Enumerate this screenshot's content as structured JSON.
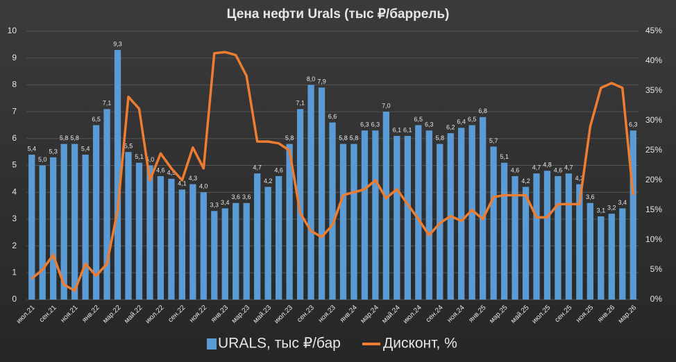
{
  "chart_data": {
    "type": "bar_line",
    "title": "Цена нефти Urals (тыс ₽/баррель)",
    "categories": [
      "июл.21",
      null,
      "сен.21",
      null,
      "ноя.21",
      null,
      "янв.22",
      null,
      "мар.22",
      null,
      "май.22",
      null,
      "июл.22",
      null,
      "сен.22",
      null,
      "ноя.22",
      null,
      "янв.23",
      null,
      "мар.23",
      null,
      "май.23",
      null,
      "июл.23",
      null,
      "сен.23",
      null,
      "ноя.23",
      null,
      "янв.24",
      null,
      "мар.24",
      null,
      "май.24",
      null,
      "июл.24",
      null,
      "сен.24",
      null,
      "ноя.24",
      null,
      "янв.25",
      null,
      "мар.25",
      null,
      "май.25",
      null,
      "июл.25",
      null,
      "сен.25",
      null,
      "ноя.25",
      null,
      "янв.26",
      null,
      "мар.26"
    ],
    "series": [
      {
        "name": "URALS, тыс ₽/бар",
        "color": "#5b9bd5",
        "axis": "y",
        "values": [
          5.4,
          5.0,
          5.3,
          5.8,
          5.8,
          5.4,
          6.5,
          7.1,
          9.3,
          5.5,
          5.1,
          5.0,
          4.6,
          4.5,
          4.1,
          4.3,
          4.0,
          3.3,
          3.4,
          3.6,
          3.6,
          4.7,
          4.2,
          4.6,
          5.8,
          7.1,
          8.0,
          7.9,
          6.6,
          5.8,
          5.8,
          6.3,
          6.3,
          7.0,
          6.1,
          6.1,
          6.5,
          6.3,
          5.8,
          6.2,
          6.4,
          6.5,
          6.8,
          5.7,
          5.1,
          4.6,
          4.2,
          4.7,
          4.8,
          4.6,
          4.7,
          4.3,
          3.6,
          3.1,
          3.2,
          3.4,
          6.3
        ],
        "value_labels": [
          "5,4",
          "5,0",
          "5,3",
          "5,8",
          "5,8",
          "5,4",
          "6,5",
          "7,1",
          "9,3",
          "5,5",
          "5,1",
          "5,0",
          "4,6",
          "4,5",
          "4,1",
          "4,3",
          "4,0",
          "3,3",
          "3,4",
          "3,6",
          "3,6",
          "4,7",
          "4,2",
          "4,6",
          "5,8",
          "7,1",
          "8,0",
          "7,9",
          "6,6",
          "5,8",
          "5,8",
          "6,3",
          "6,3",
          "7,0",
          "6,1",
          "6,1",
          "6,5",
          "6,3",
          "5,8",
          "6,2",
          "6,4",
          "6,5",
          "6,8",
          "5,7",
          "5,1",
          "4,6",
          "4,2",
          "4,7",
          "4,8",
          "4,6",
          "4,7",
          "4,3",
          "3,6",
          "3,1",
          "3,2",
          "3,4",
          "6,3"
        ]
      },
      {
        "name": "Дисконт, %",
        "color": "#ed7d31",
        "axis": "y2",
        "values": [
          3.5,
          5,
          7.5,
          2.5,
          1.5,
          6,
          4,
          6,
          15,
          34,
          32,
          20,
          24.5,
          22,
          20,
          25.5,
          22,
          41.3,
          41.5,
          41,
          37.5,
          26.5,
          26.5,
          26.2,
          25,
          14.5,
          11.5,
          10.5,
          12.5,
          17.5,
          18,
          18.5,
          20,
          17,
          18.5,
          16,
          13.5,
          10.8,
          12.8,
          14,
          13.2,
          15,
          13.5,
          17.2,
          17.5,
          17.5,
          17.5,
          13.8,
          13.8,
          16,
          16,
          16,
          29,
          35.5,
          36.3,
          35.5,
          17.5
        ]
      }
    ],
    "ylim": [
      0,
      10
    ],
    "yticks": [
      0,
      1,
      2,
      3,
      4,
      5,
      6,
      7,
      8,
      9,
      10
    ],
    "y2lim": [
      0,
      45
    ],
    "y2ticks": [
      {
        "value": 0,
        "label": "0%"
      },
      {
        "value": 5,
        "label": "5%"
      },
      {
        "value": 10,
        "label": "10%"
      },
      {
        "value": 15,
        "label": "15%"
      },
      {
        "value": 20,
        "label": "20%"
      },
      {
        "value": 25,
        "label": "25%"
      },
      {
        "value": 30,
        "label": "30%"
      },
      {
        "value": 35,
        "label": "35%"
      },
      {
        "value": 40,
        "label": "40%"
      },
      {
        "value": 45,
        "label": "45%"
      }
    ],
    "grid": true,
    "legend": "bottom"
  }
}
